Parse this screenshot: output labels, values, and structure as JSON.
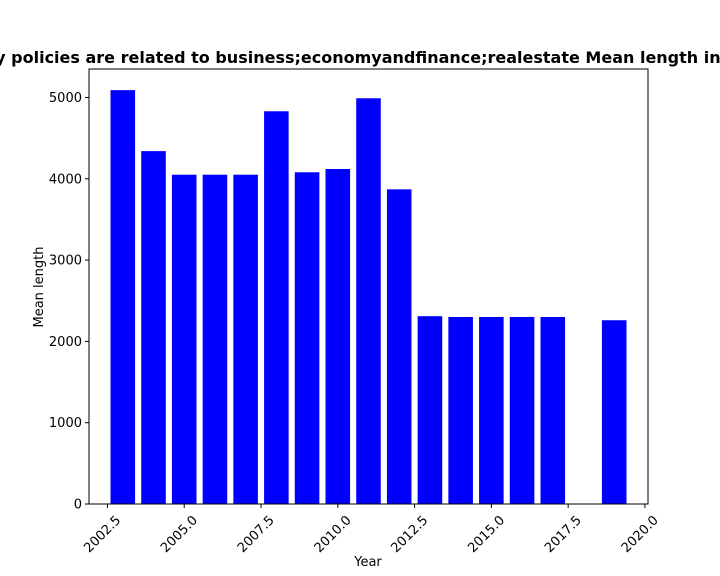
{
  "chart_data": {
    "type": "bar",
    "title": "Websites whose privacy policies are related to business;economyandfinance;realestate Mean length in privacy policies per Year",
    "xlabel": "Year",
    "ylabel": "Mean length",
    "x": [
      2003,
      2004,
      2005,
      2006,
      2007,
      2008,
      2009,
      2010,
      2011,
      2012,
      2013,
      2014,
      2015,
      2016,
      2017,
      2019
    ],
    "values": [
      5090,
      4340,
      4050,
      4050,
      4050,
      4830,
      4080,
      4120,
      4990,
      3870,
      2310,
      2300,
      2300,
      2300,
      2300,
      2260
    ],
    "xlim": [
      2001.9,
      2020.1
    ],
    "ylim": [
      0,
      5350
    ],
    "xticks": [
      "2002.5",
      "2005.0",
      "2007.5",
      "2010.0",
      "2012.5",
      "2015.0",
      "2017.5",
      "2020.0"
    ],
    "yticks": [
      "0",
      "1000",
      "2000",
      "3000",
      "4000",
      "5000"
    ],
    "bar_color": "#0000ff",
    "grid": false,
    "legend": "none"
  }
}
